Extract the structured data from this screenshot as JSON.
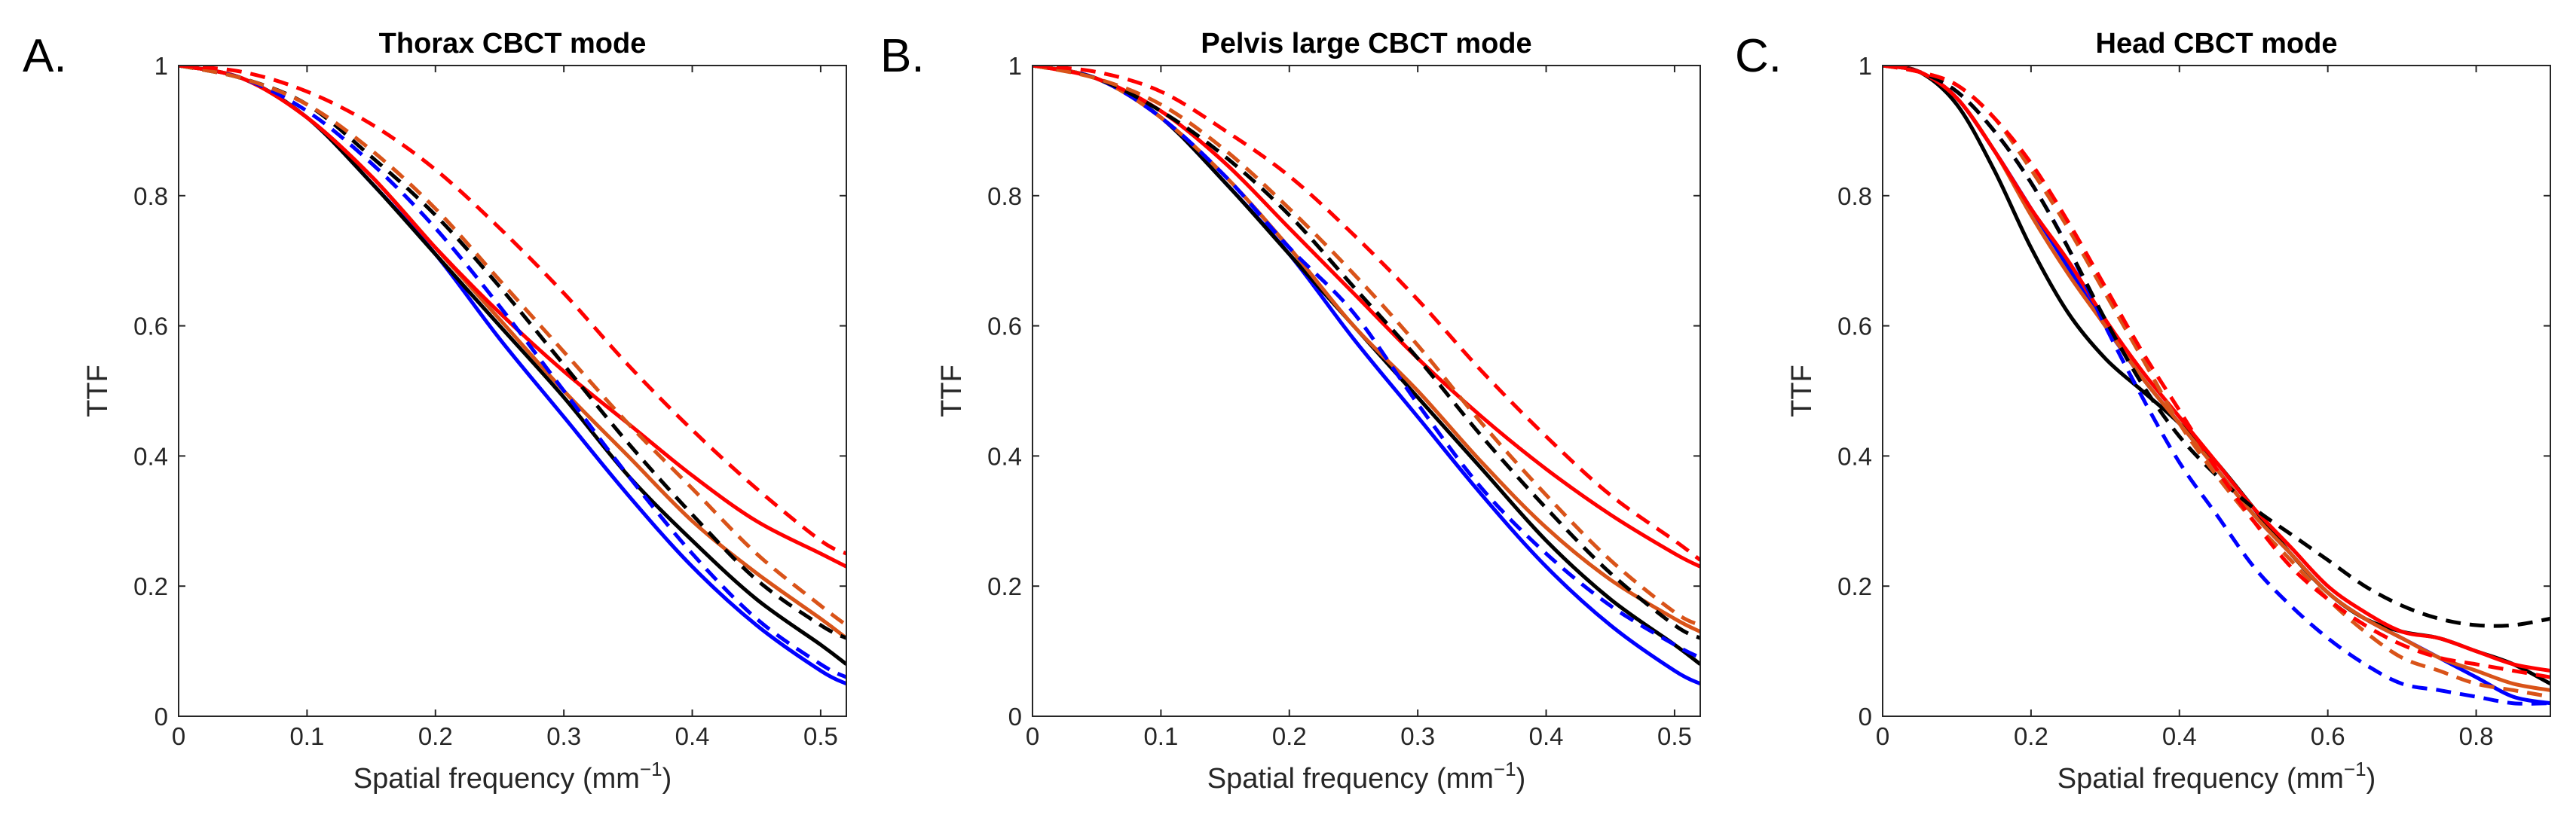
{
  "chart_data": [
    {
      "type": "line",
      "panel_letter": "A.",
      "title": "Thorax CBCT mode",
      "xlabel": "Spatial frequency (mm",
      "xlabel_sup": "−1",
      "xlabel_close": ")",
      "ylabel": "TTF",
      "xlim": [
        0,
        0.52
      ],
      "ylim": [
        0,
        1
      ],
      "xticks": [
        0,
        0.1,
        0.2,
        0.3,
        0.4,
        0.5
      ],
      "xtick_labels": [
        "0",
        "0.1",
        "0.2",
        "0.3",
        "0.4",
        "0.5"
      ],
      "yticks": [
        0,
        0.2,
        0.4,
        0.6,
        0.8,
        1
      ],
      "ytick_labels": [
        "0",
        "0.2",
        "0.4",
        "0.6",
        "0.8",
        "1"
      ],
      "series": [
        {
          "name": "blue solid",
          "color": "#0000ff",
          "dash": "solid",
          "x": [
            0,
            0.05,
            0.1,
            0.15,
            0.2,
            0.25,
            0.3,
            0.35,
            0.4,
            0.45,
            0.5,
            0.52
          ],
          "y": [
            1,
            0.98,
            0.92,
            0.82,
            0.71,
            0.58,
            0.46,
            0.34,
            0.23,
            0.14,
            0.07,
            0.05
          ]
        },
        {
          "name": "black solid",
          "color": "#000000",
          "dash": "solid",
          "x": [
            0,
            0.05,
            0.1,
            0.15,
            0.2,
            0.25,
            0.3,
            0.35,
            0.4,
            0.45,
            0.5,
            0.52
          ],
          "y": [
            1,
            0.98,
            0.92,
            0.82,
            0.71,
            0.6,
            0.49,
            0.37,
            0.27,
            0.18,
            0.11,
            0.08
          ]
        },
        {
          "name": "orange solid",
          "color": "#d95319",
          "dash": "solid",
          "x": [
            0,
            0.05,
            0.1,
            0.15,
            0.2,
            0.25,
            0.3,
            0.35,
            0.4,
            0.45,
            0.5,
            0.52
          ],
          "y": [
            1,
            0.98,
            0.92,
            0.83,
            0.72,
            0.61,
            0.5,
            0.4,
            0.3,
            0.22,
            0.15,
            0.12
          ]
        },
        {
          "name": "red solid",
          "color": "#ff0000",
          "dash": "solid",
          "x": [
            0,
            0.05,
            0.1,
            0.15,
            0.2,
            0.25,
            0.3,
            0.35,
            0.4,
            0.45,
            0.5,
            0.52
          ],
          "y": [
            1,
            0.98,
            0.92,
            0.83,
            0.72,
            0.62,
            0.53,
            0.45,
            0.37,
            0.3,
            0.25,
            0.23
          ]
        },
        {
          "name": "blue dashed",
          "color": "#0000ff",
          "dash": "dashed",
          "x": [
            0,
            0.05,
            0.1,
            0.15,
            0.2,
            0.25,
            0.3,
            0.35,
            0.4,
            0.45,
            0.5,
            0.52
          ],
          "y": [
            1,
            0.98,
            0.93,
            0.85,
            0.75,
            0.63,
            0.5,
            0.37,
            0.25,
            0.15,
            0.08,
            0.06
          ]
        },
        {
          "name": "black dashed",
          "color": "#000000",
          "dash": "dashed",
          "x": [
            0,
            0.05,
            0.1,
            0.15,
            0.2,
            0.25,
            0.3,
            0.35,
            0.4,
            0.45,
            0.5,
            0.52
          ],
          "y": [
            1,
            0.98,
            0.94,
            0.86,
            0.77,
            0.66,
            0.54,
            0.42,
            0.31,
            0.21,
            0.14,
            0.12
          ]
        },
        {
          "name": "orange dashed",
          "color": "#d95319",
          "dash": "dashed",
          "x": [
            0,
            0.05,
            0.1,
            0.15,
            0.2,
            0.25,
            0.3,
            0.35,
            0.4,
            0.45,
            0.5,
            0.52
          ],
          "y": [
            1,
            0.98,
            0.94,
            0.87,
            0.78,
            0.67,
            0.56,
            0.45,
            0.35,
            0.25,
            0.17,
            0.14
          ]
        },
        {
          "name": "red dashed",
          "color": "#ff0000",
          "dash": "dashed",
          "x": [
            0,
            0.05,
            0.1,
            0.15,
            0.2,
            0.25,
            0.3,
            0.35,
            0.4,
            0.45,
            0.5,
            0.52
          ],
          "y": [
            1,
            0.99,
            0.96,
            0.91,
            0.84,
            0.75,
            0.65,
            0.54,
            0.44,
            0.35,
            0.27,
            0.25
          ]
        }
      ]
    },
    {
      "type": "line",
      "panel_letter": "B.",
      "title": "Pelvis large CBCT mode",
      "xlabel": "Spatial frequency (mm",
      "xlabel_sup": "−1",
      "xlabel_close": ")",
      "ylabel": "TTF",
      "xlim": [
        0,
        0.52
      ],
      "ylim": [
        0,
        1
      ],
      "xticks": [
        0,
        0.1,
        0.2,
        0.3,
        0.4,
        0.5
      ],
      "xtick_labels": [
        "0",
        "0.1",
        "0.2",
        "0.3",
        "0.4",
        "0.5"
      ],
      "yticks": [
        0,
        0.2,
        0.4,
        0.6,
        0.8,
        1
      ],
      "ytick_labels": [
        "0",
        "0.2",
        "0.4",
        "0.6",
        "0.8",
        "1"
      ],
      "series": [
        {
          "name": "blue solid",
          "color": "#0000ff",
          "dash": "solid",
          "x": [
            0,
            0.05,
            0.1,
            0.15,
            0.2,
            0.25,
            0.3,
            0.35,
            0.4,
            0.45,
            0.5,
            0.52
          ],
          "y": [
            1,
            0.98,
            0.92,
            0.82,
            0.71,
            0.58,
            0.46,
            0.34,
            0.23,
            0.14,
            0.07,
            0.05
          ]
        },
        {
          "name": "black solid",
          "color": "#000000",
          "dash": "solid",
          "x": [
            0,
            0.05,
            0.1,
            0.15,
            0.2,
            0.25,
            0.3,
            0.35,
            0.4,
            0.45,
            0.5,
            0.52
          ],
          "y": [
            1,
            0.98,
            0.92,
            0.82,
            0.71,
            0.6,
            0.49,
            0.38,
            0.27,
            0.18,
            0.11,
            0.08
          ]
        },
        {
          "name": "orange solid",
          "color": "#d95319",
          "dash": "solid",
          "x": [
            0,
            0.05,
            0.1,
            0.15,
            0.2,
            0.25,
            0.3,
            0.35,
            0.4,
            0.45,
            0.5,
            0.52
          ],
          "y": [
            1,
            0.98,
            0.92,
            0.83,
            0.72,
            0.6,
            0.5,
            0.39,
            0.29,
            0.21,
            0.15,
            0.13
          ]
        },
        {
          "name": "red solid",
          "color": "#ff0000",
          "dash": "solid",
          "x": [
            0,
            0.05,
            0.1,
            0.15,
            0.2,
            0.25,
            0.3,
            0.35,
            0.4,
            0.45,
            0.5,
            0.52
          ],
          "y": [
            1,
            0.98,
            0.93,
            0.85,
            0.75,
            0.65,
            0.55,
            0.46,
            0.38,
            0.31,
            0.25,
            0.23
          ]
        },
        {
          "name": "blue dashed",
          "color": "#0000ff",
          "dash": "dashed",
          "x": [
            0,
            0.05,
            0.1,
            0.15,
            0.2,
            0.25,
            0.3,
            0.35,
            0.4,
            0.45,
            0.5,
            0.52
          ],
          "y": [
            1,
            0.98,
            0.92,
            0.83,
            0.72,
            0.62,
            0.48,
            0.35,
            0.25,
            0.17,
            0.11,
            0.09
          ]
        },
        {
          "name": "black dashed",
          "color": "#000000",
          "dash": "dashed",
          "x": [
            0,
            0.05,
            0.1,
            0.15,
            0.2,
            0.25,
            0.3,
            0.35,
            0.4,
            0.45,
            0.5,
            0.52
          ],
          "y": [
            1,
            0.98,
            0.93,
            0.86,
            0.77,
            0.66,
            0.55,
            0.43,
            0.32,
            0.22,
            0.14,
            0.12
          ]
        },
        {
          "name": "orange dashed",
          "color": "#d95319",
          "dash": "dashed",
          "x": [
            0,
            0.05,
            0.1,
            0.15,
            0.2,
            0.25,
            0.3,
            0.35,
            0.4,
            0.45,
            0.5,
            0.52
          ],
          "y": [
            1,
            0.98,
            0.94,
            0.87,
            0.78,
            0.68,
            0.57,
            0.45,
            0.34,
            0.24,
            0.16,
            0.14
          ]
        },
        {
          "name": "red dashed",
          "color": "#ff0000",
          "dash": "dashed",
          "x": [
            0,
            0.05,
            0.1,
            0.15,
            0.2,
            0.25,
            0.3,
            0.35,
            0.4,
            0.45,
            0.5,
            0.52
          ],
          "y": [
            1,
            0.99,
            0.96,
            0.9,
            0.83,
            0.74,
            0.64,
            0.53,
            0.43,
            0.34,
            0.27,
            0.24
          ]
        }
      ]
    },
    {
      "type": "line",
      "panel_letter": "C.",
      "title": "Head CBCT mode",
      "xlabel": "Spatial frequency (mm",
      "xlabel_sup": "−1",
      "xlabel_close": ")",
      "ylabel": "TTF",
      "xlim": [
        0,
        0.9
      ],
      "ylim": [
        0,
        1
      ],
      "xticks": [
        0,
        0.2,
        0.4,
        0.6,
        0.8
      ],
      "xtick_labels": [
        "0",
        "0.2",
        "0.4",
        "0.6",
        "0.8"
      ],
      "yticks": [
        0,
        0.2,
        0.4,
        0.6,
        0.8,
        1
      ],
      "ytick_labels": [
        "0",
        "0.2",
        "0.4",
        "0.6",
        "0.8",
        "1"
      ],
      "series": [
        {
          "name": "blue solid",
          "color": "#0000ff",
          "dash": "solid",
          "x": [
            0,
            0.05,
            0.1,
            0.15,
            0.2,
            0.25,
            0.3,
            0.35,
            0.4,
            0.45,
            0.5,
            0.55,
            0.6,
            0.65,
            0.7,
            0.75,
            0.8,
            0.85,
            0.9
          ],
          "y": [
            1,
            0.99,
            0.95,
            0.87,
            0.78,
            0.69,
            0.6,
            0.52,
            0.45,
            0.38,
            0.31,
            0.25,
            0.19,
            0.15,
            0.12,
            0.09,
            0.06,
            0.03,
            0.02
          ]
        },
        {
          "name": "black solid",
          "color": "#000000",
          "dash": "solid",
          "x": [
            0,
            0.05,
            0.1,
            0.15,
            0.2,
            0.25,
            0.3,
            0.35,
            0.4,
            0.45,
            0.5,
            0.55,
            0.6,
            0.65,
            0.7,
            0.75,
            0.8,
            0.85,
            0.9
          ],
          "y": [
            1,
            0.99,
            0.94,
            0.84,
            0.72,
            0.62,
            0.55,
            0.5,
            0.45,
            0.39,
            0.32,
            0.25,
            0.19,
            0.15,
            0.13,
            0.12,
            0.1,
            0.08,
            0.05
          ]
        },
        {
          "name": "orange solid",
          "color": "#d95319",
          "dash": "solid",
          "x": [
            0,
            0.05,
            0.1,
            0.15,
            0.2,
            0.25,
            0.3,
            0.35,
            0.4,
            0.45,
            0.5,
            0.55,
            0.6,
            0.65,
            0.7,
            0.75,
            0.8,
            0.85,
            0.9
          ],
          "y": [
            1,
            0.99,
            0.95,
            0.87,
            0.77,
            0.68,
            0.6,
            0.52,
            0.45,
            0.38,
            0.31,
            0.25,
            0.19,
            0.15,
            0.12,
            0.09,
            0.07,
            0.05,
            0.04
          ]
        },
        {
          "name": "red solid",
          "color": "#ff0000",
          "dash": "solid",
          "x": [
            0,
            0.05,
            0.1,
            0.15,
            0.2,
            0.25,
            0.3,
            0.35,
            0.4,
            0.45,
            0.5,
            0.55,
            0.6,
            0.65,
            0.7,
            0.75,
            0.8,
            0.85,
            0.9
          ],
          "y": [
            1,
            0.99,
            0.95,
            0.87,
            0.78,
            0.7,
            0.61,
            0.53,
            0.46,
            0.39,
            0.32,
            0.26,
            0.2,
            0.16,
            0.13,
            0.12,
            0.1,
            0.08,
            0.07
          ]
        },
        {
          "name": "blue dashed",
          "color": "#0000ff",
          "dash": "dashed",
          "x": [
            0,
            0.05,
            0.1,
            0.15,
            0.2,
            0.25,
            0.3,
            0.35,
            0.4,
            0.45,
            0.5,
            0.55,
            0.6,
            0.65,
            0.7,
            0.75,
            0.8,
            0.85,
            0.9
          ],
          "y": [
            1,
            0.99,
            0.96,
            0.9,
            0.82,
            0.72,
            0.6,
            0.49,
            0.39,
            0.31,
            0.23,
            0.17,
            0.12,
            0.08,
            0.05,
            0.04,
            0.03,
            0.02,
            0.02
          ]
        },
        {
          "name": "black dashed",
          "color": "#000000",
          "dash": "dashed",
          "x": [
            0,
            0.05,
            0.1,
            0.15,
            0.2,
            0.25,
            0.3,
            0.35,
            0.4,
            0.45,
            0.5,
            0.55,
            0.6,
            0.65,
            0.7,
            0.75,
            0.8,
            0.85,
            0.9
          ],
          "y": [
            1,
            0.99,
            0.96,
            0.9,
            0.82,
            0.72,
            0.61,
            0.51,
            0.43,
            0.37,
            0.32,
            0.28,
            0.24,
            0.2,
            0.17,
            0.15,
            0.14,
            0.14,
            0.15
          ]
        },
        {
          "name": "orange dashed",
          "color": "#d95319",
          "dash": "dashed",
          "x": [
            0,
            0.05,
            0.1,
            0.15,
            0.2,
            0.25,
            0.3,
            0.35,
            0.4,
            0.45,
            0.5,
            0.55,
            0.6,
            0.65,
            0.7,
            0.75,
            0.8,
            0.85,
            0.9
          ],
          "y": [
            1,
            0.99,
            0.97,
            0.92,
            0.84,
            0.75,
            0.65,
            0.55,
            0.45,
            0.37,
            0.3,
            0.24,
            0.18,
            0.13,
            0.09,
            0.07,
            0.05,
            0.04,
            0.03
          ]
        },
        {
          "name": "red dashed",
          "color": "#ff0000",
          "dash": "dashed",
          "x": [
            0,
            0.05,
            0.1,
            0.15,
            0.2,
            0.25,
            0.3,
            0.35,
            0.4,
            0.45,
            0.5,
            0.55,
            0.6,
            0.65,
            0.7,
            0.75,
            0.8,
            0.85,
            0.9
          ],
          "y": [
            1,
            0.99,
            0.97,
            0.92,
            0.85,
            0.76,
            0.66,
            0.56,
            0.47,
            0.38,
            0.3,
            0.23,
            0.18,
            0.14,
            0.11,
            0.09,
            0.08,
            0.07,
            0.06
          ]
        }
      ]
    }
  ]
}
